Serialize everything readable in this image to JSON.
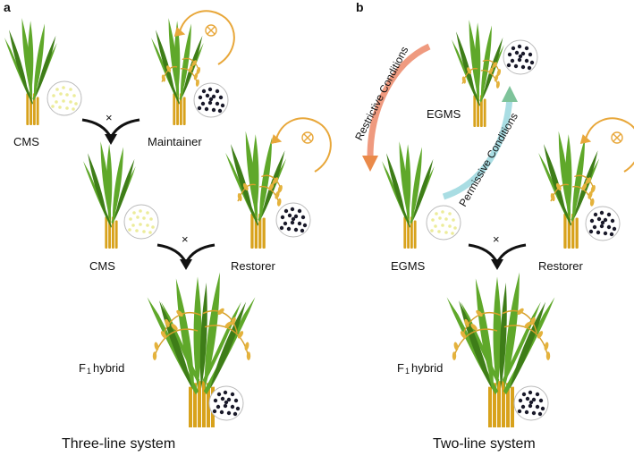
{
  "panels": {
    "a": "a",
    "b": "b"
  },
  "three_line": {
    "cms_top": "CMS",
    "maintainer": "Maintainer",
    "cms_mid": "CMS",
    "restorer": "Restorer",
    "f1_prefix": "F",
    "f1_sub": "1",
    "f1_suffix": "hybrid",
    "cross_1": "×",
    "cross_2": "×",
    "caption": "Three-line system"
  },
  "two_line": {
    "egms_top": "EGMS",
    "egms_bottom": "EGMS",
    "restorer": "Restorer",
    "restrictive": "Restrictive Conditions",
    "permissive": "Permissive Conditions",
    "f1_prefix": "F",
    "f1_sub": "1",
    "f1_suffix": "hybrid",
    "cross": "×",
    "caption": "Two-line system"
  },
  "colors": {
    "leaf": "#5fa82a",
    "leaf_dark": "#3e7d18",
    "stem": "#d8a21c",
    "panicle": "#e4b23c",
    "self_arrow": "#e8a73a",
    "restrictive_arrow": "#ef9a7f",
    "permissive_arrow": "#a9dde3",
    "fertile_pollen": "#1a1a2a",
    "sterile_pollen": "#ecec9a"
  },
  "icons": {
    "self": "selfing-icon",
    "cross_arrow": "merge-arrow-icon"
  }
}
